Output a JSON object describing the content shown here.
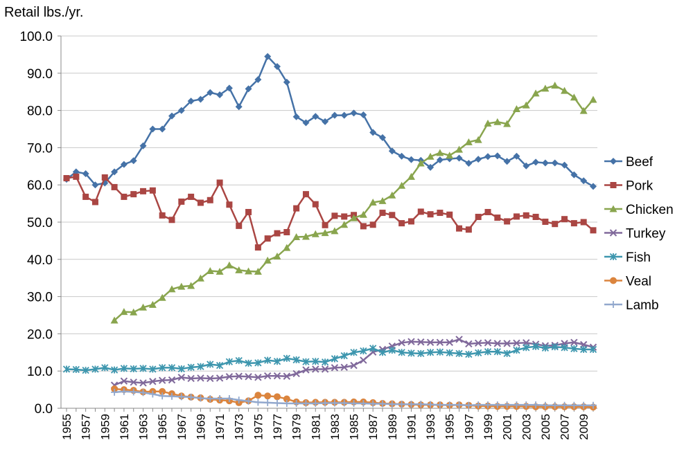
{
  "chart_data": {
    "type": "line",
    "title": "",
    "ylabel": "Retail lbs./yr.",
    "xlabel": "",
    "ylim": [
      0,
      100
    ],
    "yticks": [
      0,
      10,
      20,
      30,
      40,
      50,
      60,
      70,
      80,
      90,
      100
    ],
    "ytick_labels": [
      "0.0",
      "10.0",
      "20.0",
      "30.0",
      "40.0",
      "50.0",
      "60.0",
      "70.0",
      "80.0",
      "90.0",
      "100.0"
    ],
    "x_start": 1955,
    "x_end": 2010,
    "xtick_labels": [
      "1955",
      "1957",
      "1959",
      "1961",
      "1963",
      "1965",
      "1967",
      "1969",
      "1971",
      "1973",
      "1975",
      "1977",
      "1979",
      "1981",
      "1983",
      "1985",
      "1987",
      "1989",
      "1991",
      "1993",
      "1995",
      "1997",
      "1999",
      "2001",
      "2003",
      "2005",
      "2007",
      "2009"
    ],
    "legend_position": "right",
    "series": [
      {
        "name": "Beef",
        "color": "#4572A7",
        "marker": "diamond",
        "start": 1955,
        "values": [
          61.5,
          63.5,
          63.0,
          60.0,
          60.5,
          63.5,
          65.5,
          66.5,
          70.5,
          75.0,
          75.0,
          78.5,
          80.0,
          82.5,
          83.0,
          84.8,
          84.2,
          86.0,
          81.0,
          85.8,
          88.3,
          94.5,
          91.8,
          87.6,
          78.3,
          76.7,
          78.4,
          77.0,
          78.7,
          78.7,
          79.3,
          78.8,
          74.1,
          72.7,
          69.1,
          67.7,
          66.8,
          66.6,
          64.7,
          66.7,
          67.0,
          67.2,
          65.8,
          66.9,
          67.6,
          67.8,
          66.3,
          67.7,
          65.1,
          66.1,
          65.9,
          65.9,
          65.3,
          62.7,
          61.1,
          59.6
        ]
      },
      {
        "name": "Pork",
        "color": "#AA4643",
        "marker": "square",
        "start": 1955,
        "values": [
          61.8,
          62.2,
          56.8,
          55.4,
          62.0,
          59.4,
          56.8,
          57.5,
          58.3,
          58.5,
          51.8,
          50.6,
          55.5,
          56.8,
          55.2,
          55.9,
          60.6,
          54.7,
          49.0,
          52.7,
          43.2,
          45.6,
          47.0,
          47.3,
          53.7,
          57.5,
          54.8,
          49.2,
          51.7,
          51.5,
          51.9,
          48.9,
          49.3,
          52.5,
          51.9,
          49.7,
          50.2,
          52.8,
          52.1,
          52.5,
          52.0,
          48.3,
          48.0,
          51.4,
          52.7,
          51.2,
          50.2,
          51.5,
          51.8,
          51.4,
          50.1,
          49.5,
          50.8,
          49.7,
          50.0,
          47.8
        ]
      },
      {
        "name": "Chicken",
        "color": "#89A54E",
        "marker": "triangle",
        "start": 1960,
        "values": [
          23.6,
          25.9,
          25.8,
          27.1,
          27.8,
          29.7,
          32.0,
          32.7,
          32.9,
          34.9,
          36.9,
          36.7,
          38.4,
          37.1,
          36.8,
          36.7,
          39.7,
          40.8,
          43.1,
          46.0,
          46.1,
          46.8,
          47.1,
          47.6,
          49.3,
          51.1,
          52.0,
          55.3,
          55.7,
          57.2,
          59.8,
          62.2,
          65.8,
          67.6,
          68.6,
          67.9,
          69.5,
          71.5,
          72.1,
          76.5,
          76.9,
          76.4,
          80.4,
          81.4,
          84.6,
          85.9,
          86.7,
          85.3,
          83.5,
          79.9,
          82.9
        ]
      },
      {
        "name": "Turkey",
        "color": "#80699B",
        "marker": "x",
        "start": 1960,
        "values": [
          6.2,
          7.3,
          7.0,
          6.8,
          7.2,
          7.5,
          7.6,
          8.3,
          8.0,
          8.1,
          8.0,
          8.1,
          8.5,
          8.6,
          8.5,
          8.3,
          8.7,
          8.7,
          8.6,
          9.3,
          10.3,
          10.5,
          10.5,
          10.9,
          11.0,
          11.5,
          12.9,
          15.1,
          15.8,
          16.7,
          17.6,
          17.9,
          17.8,
          17.7,
          17.7,
          17.7,
          18.5,
          17.3,
          17.5,
          17.6,
          17.4,
          17.4,
          17.5,
          17.6,
          17.2,
          16.8,
          16.9,
          17.4,
          17.7,
          17.1,
          16.4
        ]
      },
      {
        "name": "Fish",
        "color": "#3D96AE",
        "marker": "star",
        "start": 1955,
        "values": [
          10.5,
          10.4,
          10.2,
          10.5,
          10.9,
          10.3,
          10.7,
          10.6,
          10.7,
          10.5,
          10.9,
          10.9,
          10.6,
          11.0,
          11.2,
          11.8,
          11.5,
          12.5,
          12.8,
          12.1,
          12.2,
          12.9,
          12.6,
          13.4,
          13.0,
          12.5,
          12.6,
          12.4,
          13.3,
          14.1,
          15.0,
          15.4,
          16.1,
          15.0,
          15.6,
          15.0,
          14.8,
          14.7,
          15.0,
          15.1,
          14.9,
          14.7,
          14.5,
          14.9,
          15.2,
          15.2,
          14.7,
          15.6,
          16.3,
          16.6,
          16.2,
          16.5,
          16.3,
          16.0,
          15.8,
          15.8
        ]
      },
      {
        "name": "Veal",
        "color": "#DB843D",
        "marker": "circle",
        "start": 1960,
        "values": [
          5.2,
          5.0,
          4.8,
          4.4,
          4.5,
          4.5,
          3.9,
          3.3,
          3.0,
          2.8,
          2.4,
          2.2,
          2.0,
          1.5,
          2.0,
          3.5,
          3.3,
          3.1,
          2.5,
          1.7,
          1.5,
          1.6,
          1.6,
          1.6,
          1.6,
          1.7,
          1.7,
          1.5,
          1.3,
          1.2,
          1.1,
          1.0,
          0.9,
          0.9,
          0.9,
          0.8,
          0.9,
          0.8,
          0.6,
          0.6,
          0.5,
          0.5,
          0.5,
          0.5,
          0.4,
          0.4,
          0.4,
          0.4,
          0.4,
          0.4,
          0.3
        ]
      },
      {
        "name": "Lamb",
        "color": "#92A8CD",
        "marker": "plus",
        "start": 1960,
        "values": [
          4.3,
          4.5,
          4.4,
          4.2,
          3.8,
          3.3,
          3.2,
          3.1,
          3.0,
          2.7,
          2.6,
          2.6,
          2.6,
          2.2,
          1.9,
          1.6,
          1.5,
          1.4,
          1.3,
          1.3,
          1.3,
          1.3,
          1.4,
          1.4,
          1.4,
          1.3,
          1.3,
          1.2,
          1.2,
          1.1,
          1.1,
          1.1,
          1.1,
          1.0,
          0.9,
          0.9,
          0.9,
          0.8,
          0.9,
          0.9,
          0.9,
          0.9,
          0.9,
          0.9,
          0.9,
          0.8,
          0.8,
          0.8,
          0.8,
          0.8,
          0.8
        ]
      }
    ]
  }
}
